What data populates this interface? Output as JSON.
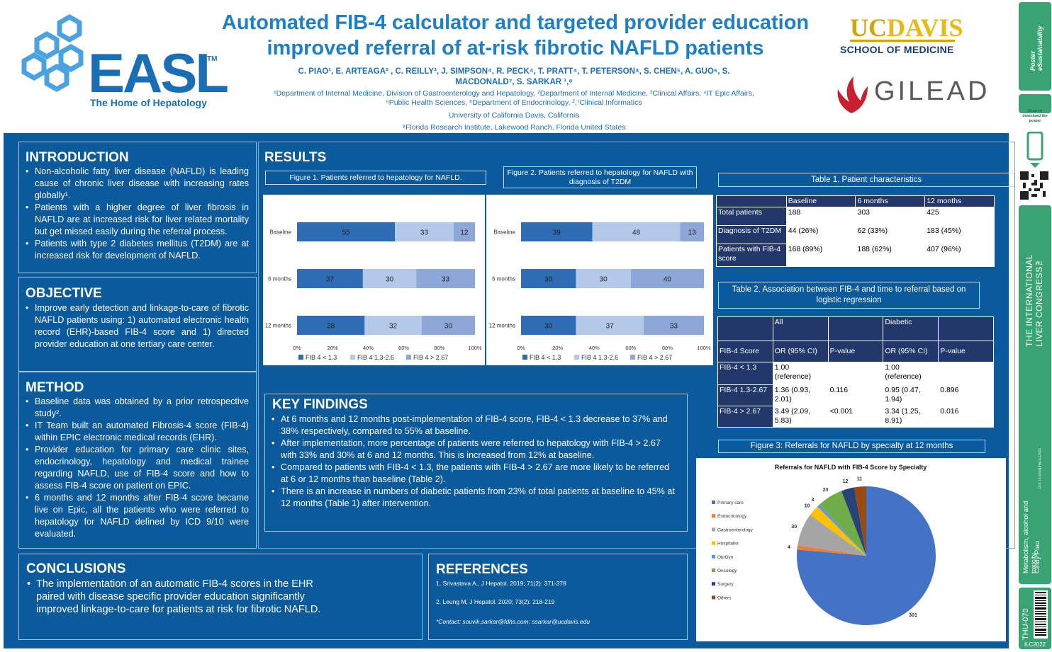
{
  "header": {
    "title_line1": "Automated FIB-4 calculator and targeted provider education",
    "title_line2": "improved referral of at-risk fibrotic NAFLD patients",
    "authors_line1": "C. PIAO¹, E. ARTEAGA² , C. REILLY³, J. SIMPSON⁴, R. PECK⁴, T. PRATT⁴, T. PETERSON⁴, S. CHEN⁵, A. GUO⁶, S.",
    "authors_line2": "MACDONALD⁷, S. SARKAR ¹,⁸",
    "affil_line1": "¹Department of Internal Medicine, Division of Gastroenterology and Hepatology, ²Department of Internal Medicine, ³Clinical Affairs, ⁴IT Epic Affairs,",
    "affil_line2": "⁵Public Health Sciences, ⁶Department of Endocrinology, ²,⁷Clinical Informatics",
    "university": "University of California Davis, California",
    "florida": "⁸Florida Research Institute, Lakewood Ranch, Florida United States"
  },
  "logos": {
    "easl_word": "EASL",
    "easl_tm": "TM",
    "easl_tagline": "The Home of Hepatology",
    "ucdavis_uc": "UC",
    "ucdavis_davis": "DAVIS",
    "ucdavis_school": "SCHOOL OF MEDICINE",
    "gilead_word": "GILEAD",
    "colors": {
      "easl_blue": "#1a6fb4",
      "uc_gold": "#d4a500",
      "gilead_red": "#c8202f"
    }
  },
  "introduction": {
    "heading": "INTRODUCTION",
    "bullets": [
      "Non-alcoholic fatty liver disease (NAFLD) is leading cause of chronic liver disease with increasing rates globally¹.",
      "Patients with a higher degree of liver fibrosis in NAFLD are at increased risk for liver related mortality but get missed easily during the referral process.",
      "Patients with type 2 diabetes mellitus (T2DM) are at increased risk for development of NAFLD."
    ]
  },
  "objective": {
    "heading": "OBJECTIVE",
    "bullets": [
      "Improve early detection and linkage-to-care of fibrotic NAFLD patients using: 1) automated electronic health record (EHR)-based FIB-4 score and 1) directed provider education at one tertiary care center."
    ]
  },
  "method": {
    "heading": "METHOD",
    "bullets": [
      "Baseline data was obtained by a prior retrospective study².",
      "IT Team built an automated Fibrosis-4 score (FIB-4) within EPIC electronic medical records (EHR).",
      "Provider education for primary care clinic sites, endocrinology, hepatology and medical trainee regarding NAFLD, use of FIB-4 score and how to assess FIB-4 score on patient on EPIC.",
      "6 months and 12 months after FIB-4 score became live on Epic, all the patients who were referred to hepatology for NAFLD defined by ICD 9/10 were evaluated."
    ]
  },
  "conclusions": {
    "heading": "CONCLUSIONS",
    "bullets": [
      "The implementation of an automatic FIB-4 scores in the EHR paired with disease specific provider education significantly improved linkage-to-care for patients at risk for fibrotic NAFLD."
    ]
  },
  "results": {
    "heading": "RESULTS"
  },
  "figure1": {
    "caption": "Figure 1. Patients referred to hepatology for NAFLD."
  },
  "figure2": {
    "caption": "Figure 2. Patients referred to hepatology for NAFLD with diagnosis of T2DM"
  },
  "figure3": {
    "caption": "Figure 3: Referrals for NAFLD by specialty at 12 months"
  },
  "key_findings": {
    "heading": "KEY FINDINGS",
    "bullets": [
      "At 6 months and 12 months post-implementation of FIB-4 score, FIB-4 < 1.3 decrease to 37% and 38% respectively, compared to 55% at baseline.",
      "After implementation, more percentage of patients were referred to hepatology with FIB-4 > 2.67 with 33% and 30% at 6 and 12 months. This is increased from 12% at baseline.",
      "Compared to patients with FIB-4 < 1.3, the patients with FIB-4 > 2.67 are more likely to be referred at 6 or 12 months than baseline (Table 2).",
      "There is an increase in numbers of diabetic patients from 23% of total patients at baseline to 45% at 12 months (Table 1) after intervention."
    ]
  },
  "references": {
    "heading": "REFERENCES",
    "items": [
      "1. Srivastava A., J Hepatol. 2019; 71(2): 371-378",
      "2. Leung M, J Hepatol. 2020; 73(2): 218-219"
    ],
    "contact": "*Contact: souvik.sarkar@fdhs.com; ssarkar@ucdavis.edu"
  },
  "table1": {
    "caption": "Table 1. Patient characteristics",
    "headers": [
      "",
      "Baseline",
      "6 months",
      "12 months"
    ],
    "rows": [
      [
        "Total patients",
        "188",
        "303",
        "425"
      ],
      [
        "Diagnosis of T2DM",
        "44 (26%)",
        "62 (33%)",
        "183 (45%)"
      ],
      [
        "Patients with FIB-4 score",
        "168 (89%)",
        "188 (62%)",
        "407 (96%)"
      ]
    ]
  },
  "table2": {
    "caption": "Table 2. Association between FIB-4 and time to referral based on logistic regression",
    "group_headers": [
      "",
      "All",
      "",
      "Diabetic",
      ""
    ],
    "headers": [
      "FIB-4 Score",
      "OR (95% CI)",
      "P-value",
      "OR (95% CI)",
      "P-value"
    ],
    "rows": [
      [
        "FIB-4 < 1.3",
        "1.00 (reference)",
        "",
        "1.00 (reference)",
        ""
      ],
      [
        "FIB-4 1.3-2.67",
        "1.36 (0.93, 2.01)",
        "0.116",
        "0.95 (0.47, 1.94)",
        "0.896"
      ],
      [
        "FIB-4 > 2.67",
        "3.49 (2.09, 5.83)",
        "<0.001",
        "3.34 (1.25, 8.91)",
        "0.016"
      ]
    ]
  },
  "chart_data": [
    {
      "type": "bar",
      "orientation": "horizontal-stacked",
      "categories": [
        "Baseline",
        "6 months",
        "12 months"
      ],
      "series": [
        {
          "name": "FIB 4 < 1.3",
          "values": [
            55,
            37,
            38
          ],
          "color": "#2e6db4"
        },
        {
          "name": "FIB 4 1.3-2.6",
          "values": [
            33,
            30,
            32
          ],
          "color": "#b4c9ea"
        },
        {
          "name": "FIB 4 > 2.67",
          "values": [
            12,
            33,
            30
          ],
          "color": "#8ea7d9"
        }
      ],
      "xticks": [
        "0%",
        "20%",
        "40%",
        "60%",
        "80%",
        "100%"
      ],
      "xlim": [
        0,
        100
      ],
      "legend": "bottom"
    },
    {
      "type": "bar",
      "orientation": "horizontal-stacked",
      "categories": [
        "Baseline",
        "6 months",
        "12 months"
      ],
      "series": [
        {
          "name": "FIB 4 < 1.3",
          "values": [
            39,
            30,
            30
          ],
          "color": "#2e6db4"
        },
        {
          "name": "FIB 4 1.3-2.6",
          "values": [
            48,
            30,
            37
          ],
          "color": "#b4c9ea"
        },
        {
          "name": "FIB 4 > 2.67",
          "values": [
            13,
            40,
            33
          ],
          "color": "#8ea7d9"
        }
      ],
      "xticks": [
        "0%",
        "20%",
        "40%",
        "60%",
        "80%",
        "100%"
      ],
      "xlim": [
        0,
        100
      ],
      "legend": "bottom"
    },
    {
      "type": "pie",
      "title": "Referrals for NAFLD with FIB-4 Score by Specialty",
      "labels": [
        "Primary care",
        "Endocrinology",
        "Gastroenterology",
        "Hospitalist",
        "Ob/Gyn",
        "Oncology",
        "Surgery",
        "Others"
      ],
      "values": [
        301,
        4,
        30,
        10,
        3,
        23,
        12,
        11
      ],
      "colors": [
        "#4472c4",
        "#ed7d31",
        "#a5a5a5",
        "#ffc000",
        "#5b9bd5",
        "#70ad47",
        "#264478",
        "#9e480e"
      ],
      "legend": "left"
    }
  ],
  "strip": {
    "top_logo": "Poster eSustainability",
    "scan_text": "Scan to download the poster",
    "congress": "THE INTERNATIONAL LIVER CONGRESS™",
    "doi": "DOI: 10.1016/j.jhep.ILC2022",
    "category": "Metabolism, alcohol and toxicity",
    "author": "Cindy Piao",
    "poster_id": "THU-070",
    "year_tag": "ILC2022"
  }
}
